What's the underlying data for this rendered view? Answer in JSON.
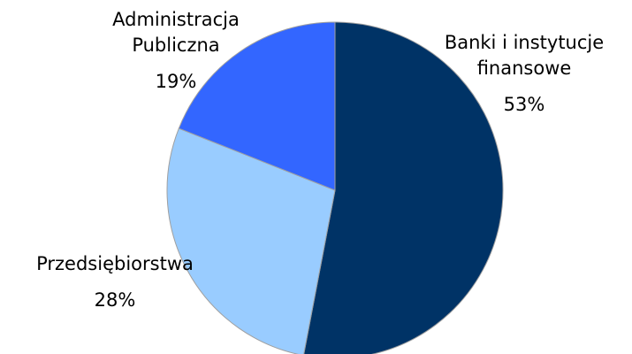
{
  "chart_data": {
    "type": "pie",
    "categories": [
      "Banki i instytucje finansowe",
      "Przedsiębiorstwa",
      "Administracja Publiczna"
    ],
    "values": [
      53,
      28,
      19
    ],
    "value_labels": [
      "53%",
      "28%",
      "19%"
    ],
    "colors": [
      "#003366",
      "#99ccff",
      "#3366ff"
    ]
  }
}
